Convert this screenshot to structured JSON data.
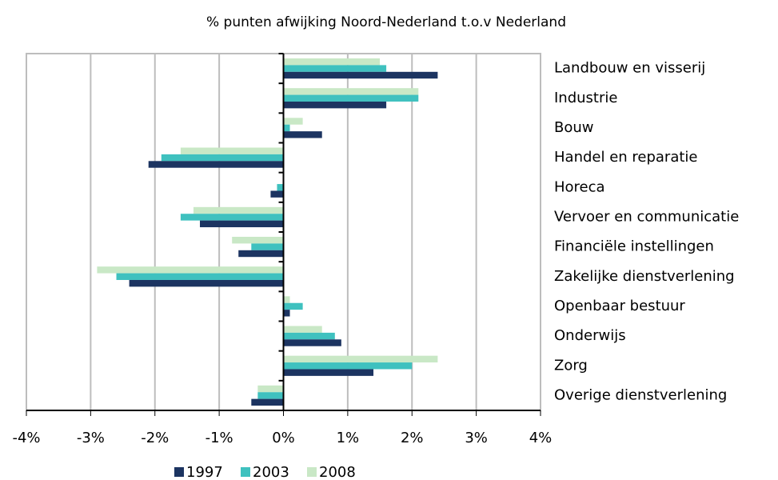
{
  "chart_data": {
    "type": "barh",
    "title": "% punten afwijking Noord-Nederland t.o.v Nederland",
    "categories": [
      "Landbouw en visserij",
      "Industrie",
      "Bouw",
      "Handel en reparatie",
      "Horeca",
      "Vervoer en communicatie",
      "Financiële instellingen",
      "Zakelijke dienstverlening",
      "Openbaar bestuur",
      "Onderwijs",
      "Zorg",
      "Overige dienstverlening"
    ],
    "series": [
      {
        "name": "1997",
        "color": "#1c3461",
        "values": [
          2.4,
          1.6,
          0.6,
          -2.1,
          -0.2,
          -1.3,
          -0.7,
          -2.4,
          0.1,
          0.9,
          1.4,
          -0.5
        ]
      },
      {
        "name": "2003",
        "color": "#3fc1bf",
        "values": [
          1.6,
          2.1,
          0.1,
          -1.9,
          -0.1,
          -1.6,
          -0.5,
          -2.6,
          0.3,
          0.8,
          2.0,
          -0.4
        ]
      },
      {
        "name": "2008",
        "color": "#c9e8c6",
        "values": [
          1.5,
          2.1,
          0.3,
          -1.6,
          0,
          -1.4,
          -0.8,
          -2.9,
          0.1,
          0.6,
          2.4,
          -0.4
        ]
      }
    ],
    "xlim": [
      -4,
      4
    ],
    "xticks": [
      {
        "value": -4,
        "label": "-4%"
      },
      {
        "value": -3,
        "label": "-3%"
      },
      {
        "value": -2,
        "label": "-2%"
      },
      {
        "value": -1,
        "label": "-1%"
      },
      {
        "value": 0,
        "label": "0%"
      },
      {
        "value": 1,
        "label": "1%"
      },
      {
        "value": 2,
        "label": "2%"
      },
      {
        "value": 3,
        "label": "3%"
      },
      {
        "value": 4,
        "label": "4%"
      }
    ],
    "grid": true
  }
}
